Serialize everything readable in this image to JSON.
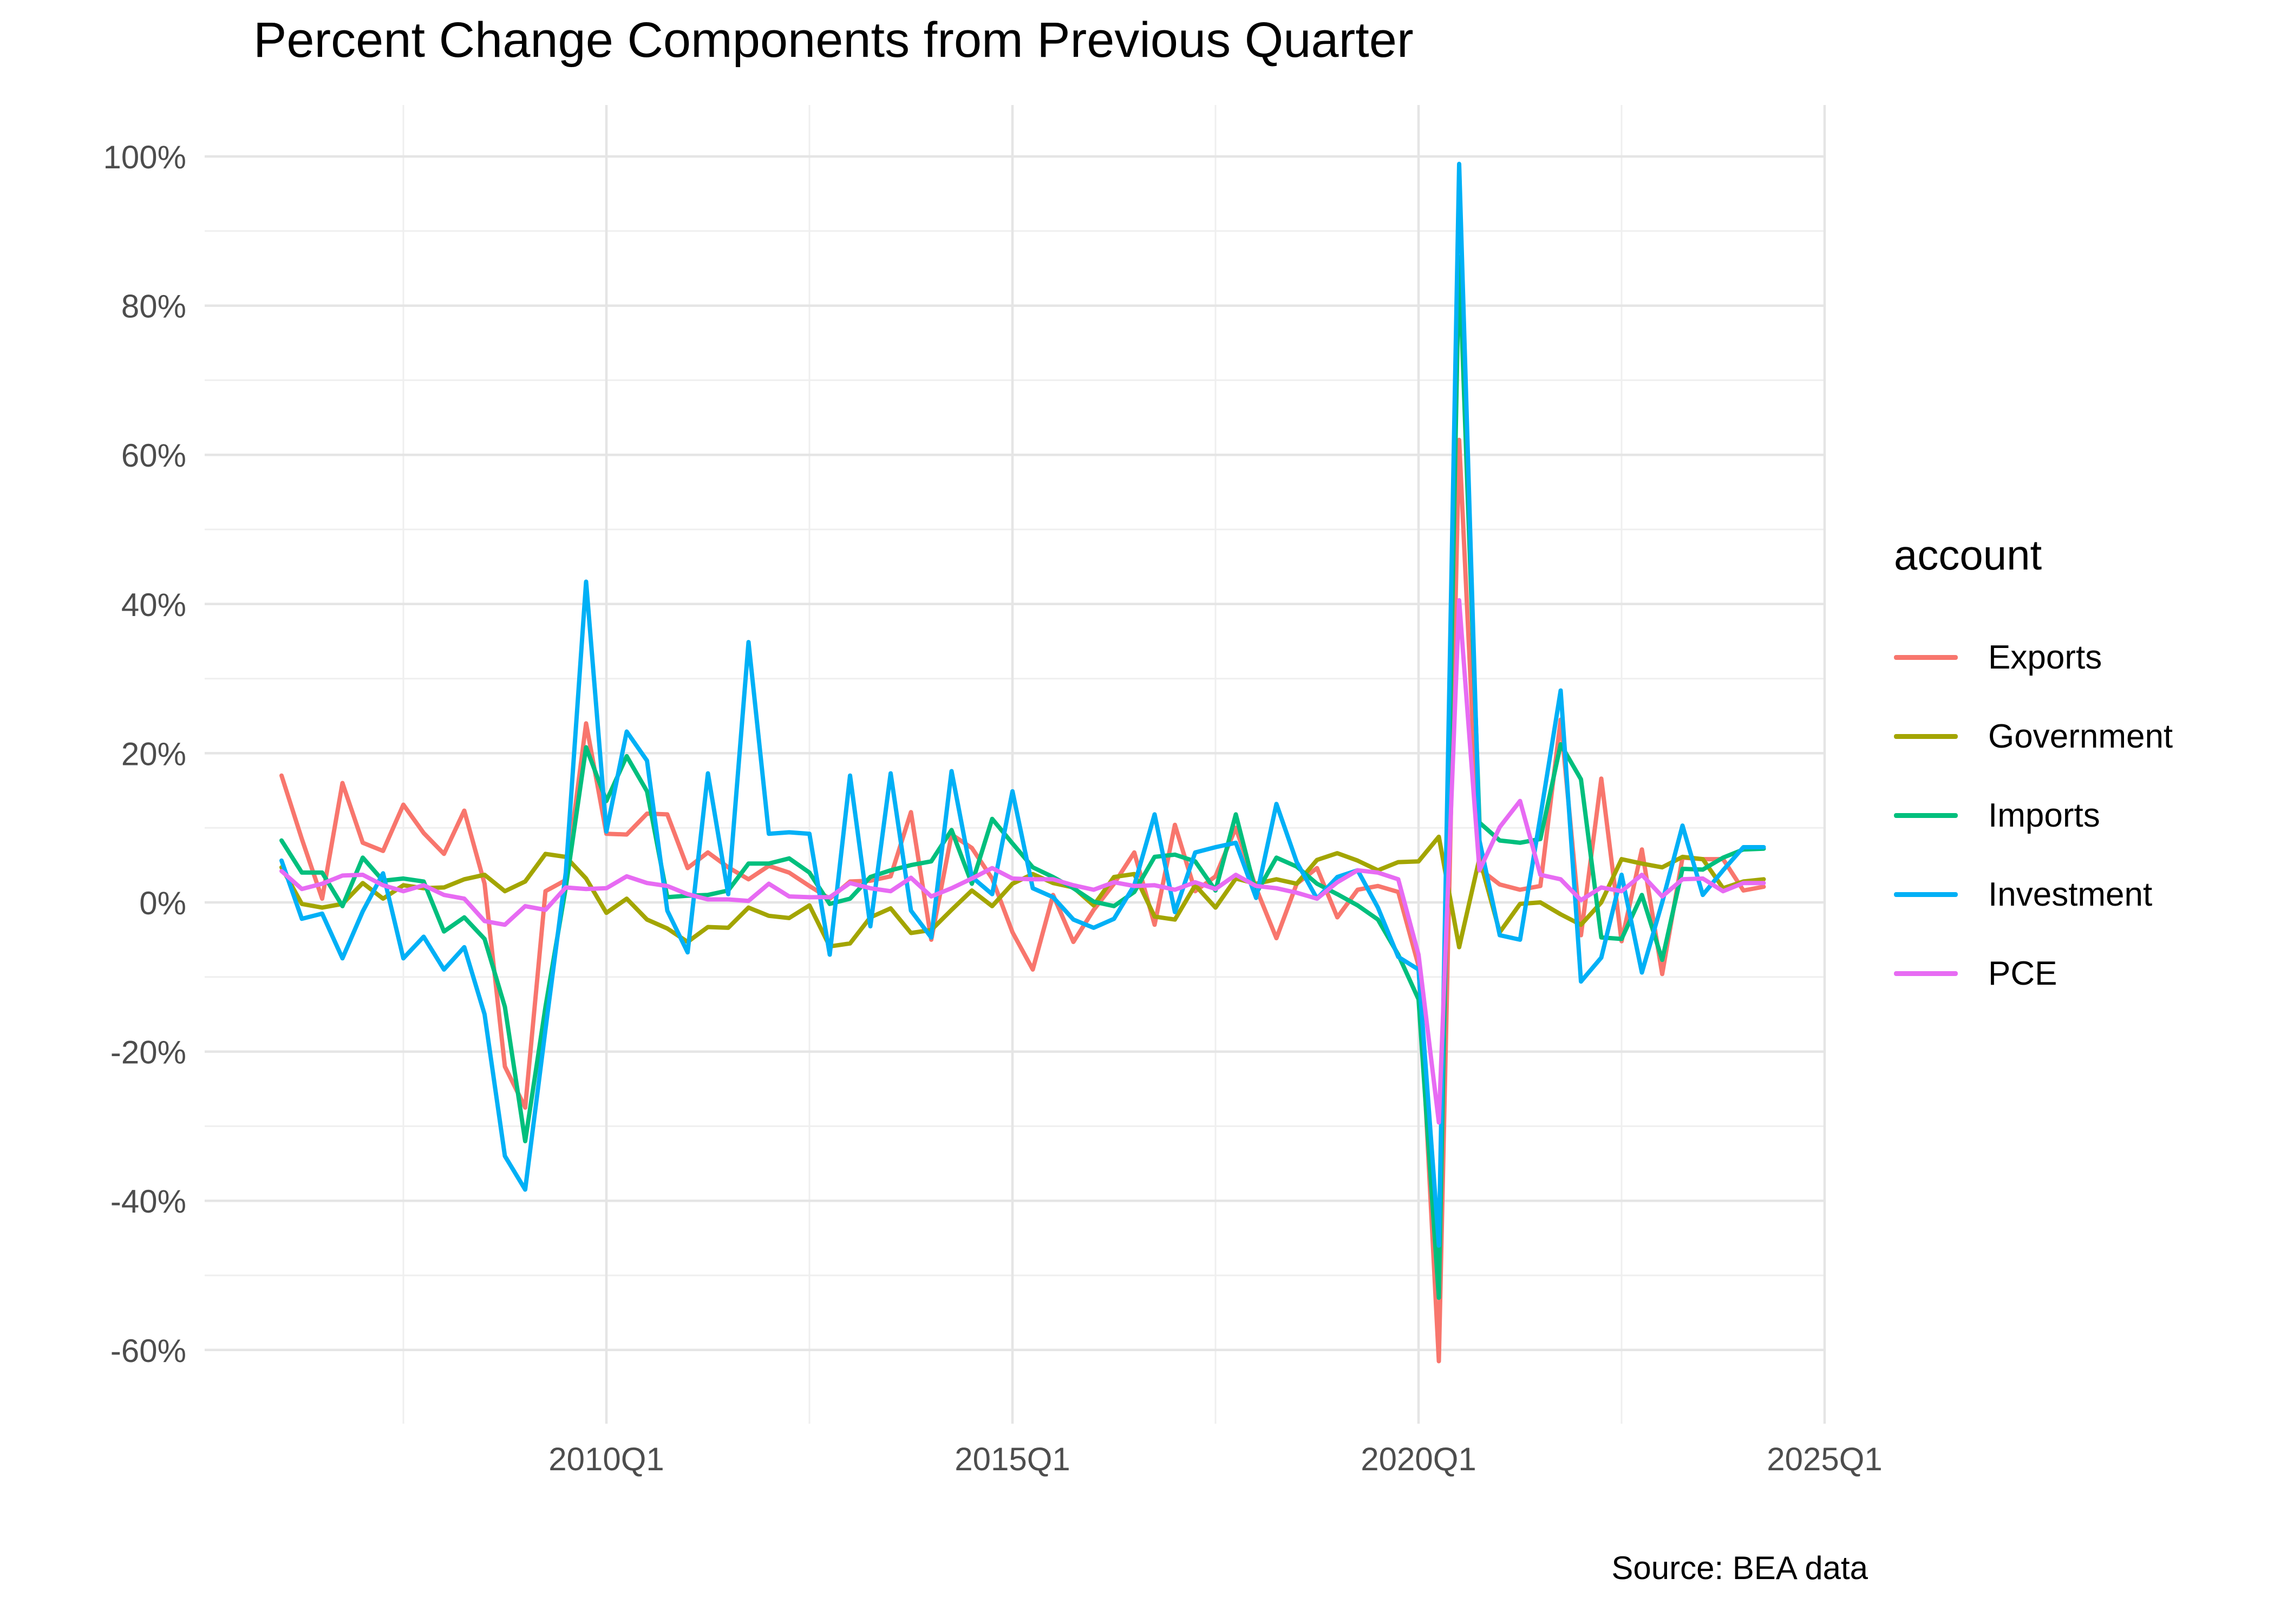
{
  "title": "Percent Change Components from Previous Quarter",
  "caption": "Source: BEA data",
  "legend": {
    "title": "account",
    "position": "right"
  },
  "chart_data": {
    "type": "line",
    "title": "Percent Change Components from Previous Quarter",
    "xlabel": "",
    "ylabel": "",
    "frequency": "quarterly",
    "x_start": "2006Q1",
    "x_end": "2024Q2",
    "ylim": [
      -70,
      106
    ],
    "grid": true,
    "legend_position": "right",
    "y_ticks": [
      {
        "label": "100%",
        "value": 100
      },
      {
        "label": "80%",
        "value": 80
      },
      {
        "label": "60%",
        "value": 60
      },
      {
        "label": "40%",
        "value": 40
      },
      {
        "label": "20%",
        "value": 20
      },
      {
        "label": "0%",
        "value": 0
      },
      {
        "label": "-20%",
        "value": -20
      },
      {
        "label": "-40%",
        "value": -40
      },
      {
        "label": "-60%",
        "value": -60
      }
    ],
    "y_minor_values": [
      90,
      70,
      50,
      30,
      10,
      -10,
      -30,
      -50,
      -70
    ],
    "x_ticks": [
      {
        "label": "2010Q1",
        "q": 16
      },
      {
        "label": "2015Q1",
        "q": 36
      },
      {
        "label": "2020Q1",
        "q": 56
      },
      {
        "label": "2025Q1",
        "q": 76
      }
    ],
    "x_minor_q": [
      6,
      26,
      46,
      66
    ],
    "series": [
      {
        "name": "Exports",
        "color": "#F8766D",
        "values": [
          17,
          8.5,
          0.5,
          16,
          8,
          6.9,
          13.1,
          9.3,
          6.5,
          12.3,
          2.5,
          -22,
          -27.5,
          1.5,
          3,
          24,
          9.2,
          9.1,
          11.9,
          11.8,
          4.6,
          6.7,
          4.7,
          3.1,
          4.9,
          4.0,
          2.2,
          0.5,
          2.8,
          2.9,
          3.5,
          12.1,
          -5,
          9.1,
          7.3,
          3.2,
          -4,
          -9,
          1,
          -5.3,
          -1,
          2.5,
          6.7,
          -3,
          10.4,
          1.5,
          3.5,
          10,
          1.9,
          -4.8,
          2.5,
          4.6,
          -2,
          1.7,
          2.2,
          1.4,
          -8.5,
          -61.5,
          62,
          4.5,
          2.4,
          1.7,
          2.2,
          24.5,
          -4.4,
          16.6,
          -5.2,
          7.1,
          -9.6,
          6,
          5.8,
          5.8,
          1.6,
          2.1
        ]
      },
      {
        "name": "Government",
        "color": "#A3A500",
        "values": [
          4.7,
          -0.2,
          -0.7,
          -0.2,
          2.6,
          0.5,
          2.3,
          1.9,
          2.0,
          3.1,
          3.7,
          1.5,
          2.8,
          6.5,
          6.1,
          3.2,
          -1.4,
          0.5,
          -2.3,
          -3.5,
          -5.3,
          -3.3,
          -3.4,
          -0.7,
          -1.8,
          -2.1,
          -0.4,
          -5.9,
          -5.5,
          -2.0,
          -0.8,
          -4.1,
          -3.7,
          -1.0,
          1.6,
          -0.5,
          2.5,
          3.8,
          2.6,
          2.0,
          -0.4,
          3.4,
          3.8,
          -1.9,
          -2.3,
          2.3,
          -0.7,
          3.2,
          2.5,
          3.1,
          2.5,
          5.7,
          6.6,
          5.6,
          4.3,
          5.4,
          5.5,
          8.8,
          -6.0,
          5.9,
          -4.0,
          -0.2,
          0.0,
          -1.6,
          -3.0,
          0.0,
          5.8,
          5.2,
          4.7,
          6.1,
          5.8,
          1.9,
          2.8,
          3.1
        ]
      },
      {
        "name": "Imports",
        "color": "#00BF7D",
        "values": [
          8.3,
          4.0,
          4.0,
          -0.5,
          6.0,
          2.9,
          3.2,
          2.8,
          -3.9,
          -2.0,
          -4.9,
          -14,
          -32,
          -14,
          2,
          20.8,
          13.6,
          19.6,
          14.9,
          0.7,
          0.9,
          1.0,
          1.6,
          5.2,
          5.2,
          5.9,
          4.0,
          -0.2,
          0.5,
          3.4,
          4.3,
          5.0,
          5.5,
          9.7,
          2.5,
          11.2,
          7.9,
          4.7,
          3.4,
          1.9,
          0.1,
          -0.5,
          1.4,
          6.1,
          6.4,
          5.5,
          1.6,
          11.8,
          1.2,
          6.0,
          4.8,
          2.5,
          1.1,
          -0.4,
          -2.3,
          -7.0,
          -13,
          -53,
          86.5,
          10.7,
          8.3,
          8.0,
          8.5,
          21.2,
          16.5,
          -4.7,
          -4.9,
          1.0,
          -7.7,
          4.5,
          4.4,
          6.0,
          7.1,
          7.2
        ]
      },
      {
        "name": "Investment",
        "color": "#00B0F6",
        "values": [
          5.6,
          -2.2,
          -1.5,
          -7.5,
          -1.2,
          3.9,
          -7.5,
          -4.6,
          -9.0,
          -6.0,
          -15,
          -34,
          -38.5,
          -17,
          4,
          43,
          9.5,
          22.9,
          19,
          -1.1,
          -6.7,
          17.3,
          1.1,
          34.9,
          9.2,
          9.4,
          9.2,
          -7,
          17,
          -3.2,
          17.3,
          -1.1,
          -4.7,
          17.6,
          3.4,
          1.1,
          14.9,
          1.9,
          0.7,
          -2.3,
          -3.4,
          -2.2,
          2.3,
          11.8,
          -1.3,
          6.7,
          7.4,
          8.0,
          0.6,
          13.2,
          5.4,
          0.5,
          3.4,
          4.3,
          -0.7,
          -7.3,
          -9,
          -46,
          99,
          8.3,
          -4.4,
          -5.0,
          11.5,
          28.4,
          -10.6,
          -7.4,
          3.7,
          -9.4,
          0.0,
          10.3,
          1.0,
          4.3,
          7.4,
          7.4
        ]
      },
      {
        "name": "PCE",
        "color": "#E76BF3",
        "values": [
          4.2,
          1.8,
          2.5,
          3.6,
          3.7,
          2.3,
          1.5,
          2.3,
          1.0,
          0.5,
          -2.5,
          -3.0,
          -0.5,
          -1.0,
          2.0,
          1.8,
          1.9,
          3.5,
          2.6,
          2.2,
          1.1,
          0.4,
          0.4,
          0.2,
          2.5,
          0.8,
          0.7,
          0.7,
          2.6,
          1.9,
          1.5,
          3.3,
          0.8,
          1.9,
          3.2,
          4.6,
          3.2,
          3.1,
          3.1,
          2.3,
          1.7,
          2.7,
          2.2,
          2.3,
          1.7,
          2.7,
          1.8,
          3.7,
          2.2,
          1.9,
          1.3,
          0.5,
          2.7,
          4.3,
          4.0,
          3.1,
          -7,
          -29.5,
          40.5,
          4.3,
          10.1,
          13.6,
          3.7,
          3.1,
          0.3,
          2.0,
          1.5,
          3.7,
          0.8,
          3.1,
          3.2,
          1.5,
          2.6,
          2.6
        ]
      }
    ]
  }
}
